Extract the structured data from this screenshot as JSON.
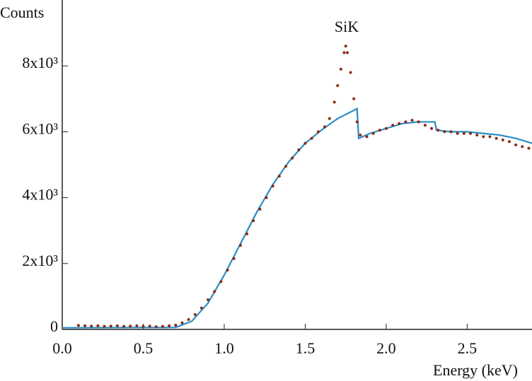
{
  "chart_data": {
    "type": "scatter",
    "y_label": "Counts",
    "x_label": "Energy (keV)",
    "annotation": "SiK",
    "xlim": [
      0,
      2.9
    ],
    "ylim": [
      0,
      10000
    ],
    "xticks": [
      {
        "value": 0,
        "label": "0.0"
      },
      0.5,
      {
        "value": 1,
        "label": "1.0"
      },
      1.5,
      {
        "value": 2,
        "label": "2.0"
      },
      2.5
    ],
    "yticks": [
      0,
      {
        "value": 2000,
        "label": "2x10³"
      },
      {
        "value": 4000,
        "label": "4x10³"
      },
      {
        "value": 6000,
        "label": "6x10³"
      },
      {
        "value": 8000,
        "label": "8x10³"
      }
    ],
    "series": [
      {
        "type": "scatter",
        "color": "#8b2a10",
        "x": [
          0.1,
          0.14,
          0.18,
          0.22,
          0.26,
          0.3,
          0.34,
          0.38,
          0.42,
          0.46,
          0.5,
          0.54,
          0.58,
          0.62,
          0.66,
          0.7,
          0.74,
          0.78,
          0.82,
          0.86,
          0.9,
          0.94,
          0.98,
          1.02,
          1.06,
          1.1,
          1.14,
          1.18,
          1.22,
          1.26,
          1.3,
          1.34,
          1.38,
          1.42,
          1.46,
          1.5,
          1.54,
          1.58,
          1.62,
          1.65,
          1.68,
          1.7,
          1.72,
          1.74,
          1.75,
          1.76,
          1.78,
          1.8,
          1.82,
          1.84,
          1.88,
          1.92,
          1.96,
          2.0,
          2.04,
          2.08,
          2.12,
          2.16,
          2.2,
          2.24,
          2.28,
          2.32,
          2.36,
          2.4,
          2.44,
          2.48,
          2.52,
          2.56,
          2.6,
          2.64,
          2.68,
          2.72,
          2.76,
          2.8,
          2.84,
          2.88
        ],
        "values": [
          120,
          110,
          100,
          110,
          90,
          100,
          110,
          90,
          100,
          110,
          90,
          100,
          80,
          90,
          110,
          130,
          200,
          300,
          450,
          650,
          900,
          1150,
          1450,
          1800,
          2150,
          2550,
          2900,
          3300,
          3650,
          4000,
          4350,
          4650,
          4950,
          5200,
          5450,
          5650,
          5800,
          6000,
          6150,
          6400,
          6900,
          7400,
          7900,
          8400,
          8600,
          8400,
          7800,
          7000,
          6300,
          5900,
          5850,
          5950,
          6050,
          6100,
          6200,
          6250,
          6300,
          6350,
          6300,
          6200,
          6100,
          6050,
          6000,
          6000,
          5950,
          5950,
          5950,
          5900,
          5850,
          5850,
          5800,
          5750,
          5700,
          5600,
          5550,
          5500
        ]
      },
      {
        "type": "line",
        "color": "#2b8cc4",
        "x": [
          0.0,
          0.7,
          0.8,
          0.9,
          1.0,
          1.1,
          1.2,
          1.3,
          1.4,
          1.5,
          1.6,
          1.7,
          1.82,
          1.83,
          1.9,
          2.0,
          2.1,
          2.2,
          2.3,
          2.31,
          2.4,
          2.5,
          2.6,
          2.7,
          2.8,
          2.9
        ],
        "values": [
          50,
          60,
          250,
          800,
          1650,
          2600,
          3550,
          4400,
          5100,
          5650,
          6050,
          6400,
          6700,
          5800,
          5950,
          6100,
          6250,
          6300,
          6300,
          6050,
          6000,
          6000,
          5950,
          5900,
          5800,
          5650
        ]
      }
    ]
  }
}
